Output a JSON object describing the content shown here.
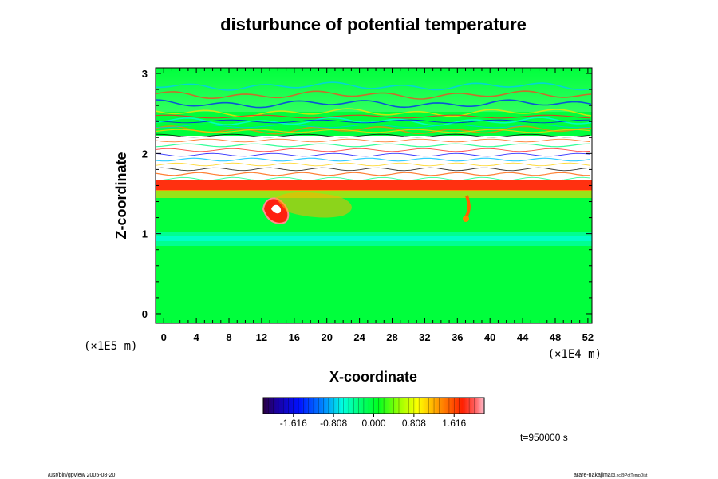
{
  "chart_data": {
    "type": "heatmap",
    "title": "disturbunce of potential temperature",
    "xlabel": "X-coordinate",
    "ylabel": "Z-coordinate",
    "x_scale_label": "(×1E4 m)",
    "y_scale_label": "(×1E5 m)",
    "x_ticks": [
      "0",
      "4",
      "8",
      "12",
      "16",
      "20",
      "24",
      "28",
      "32",
      "36",
      "40",
      "44",
      "48",
      "52"
    ],
    "y_ticks": [
      "0",
      "1",
      "2",
      "3"
    ],
    "xlim": [
      -1,
      52.5
    ],
    "ylim": [
      -0.12,
      3.07
    ],
    "colorbar": {
      "ticks": [
        "-1.616",
        "-0.808",
        "0.000",
        "0.808",
        "1.616"
      ],
      "min": -2.222,
      "max": 2.222
    },
    "time_label": "t=950000 s"
  },
  "footer": {
    "left": "/usr/bin/gpview 2005-08-20",
    "right_main": "arare-nakajima",
    "right_sub": "03.nc@PotTempDist"
  },
  "colors": {
    "background": "#00ff3c",
    "warm": "#ff2a10",
    "cool": "#00ffd8"
  }
}
